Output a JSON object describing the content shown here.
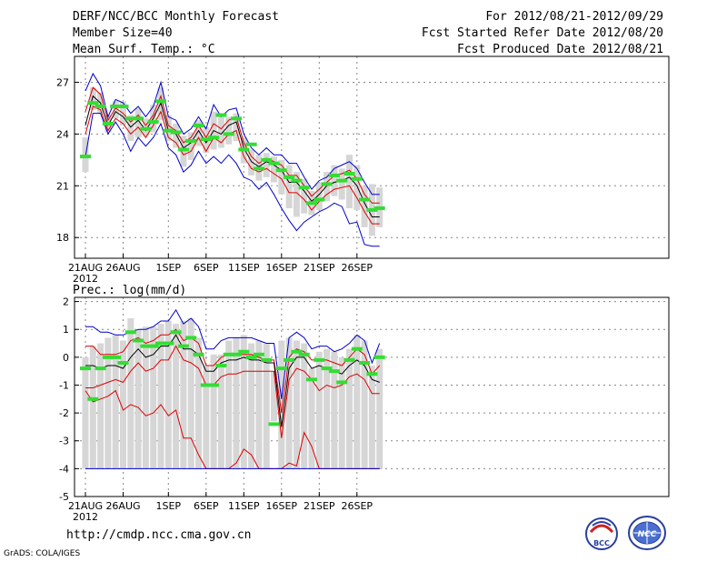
{
  "header": {
    "title": "DERF/NCC/BCC Monthly Forecast",
    "member_size": "Member Size=40",
    "variable": "Mean Surf. Temp.: °C",
    "period": "For 2012/08/21-2012/09/29",
    "started": "Fcst Started Refer Date 2012/08/20",
    "produced": "Fcst Produced Date 2012/08/21"
  },
  "footer": {
    "url": "http://cmdp.ncc.cma.gov.cn",
    "credit": "GrADS: COLA/IGES",
    "logo_bcc": "BCC",
    "logo_ncc": "NCC"
  },
  "colors": {
    "mean": "#000000",
    "spread": "#dd0000",
    "envelope": "#0000cc",
    "box": "#d6d6d6",
    "median": "#33dd33",
    "grid": "#888888"
  },
  "chart_data": [
    {
      "type": "line",
      "title": "Mean Surf. Temp.: °C",
      "x_tick_labels": [
        "21AUG",
        "26AUG",
        "1SEP",
        "6SEP",
        "11SEP",
        "16SEP",
        "21SEP",
        "26SEP"
      ],
      "x_year_label": "2012",
      "x_tick_days": [
        0,
        5,
        11,
        16,
        21,
        26,
        31,
        36
      ],
      "ylim": [
        16.8,
        28.5
      ],
      "y_ticks": [
        18,
        21,
        24,
        27
      ],
      "grid": true,
      "days": [
        0,
        1,
        2,
        3,
        4,
        5,
        6,
        7,
        8,
        9,
        10,
        11,
        12,
        13,
        14,
        15,
        16,
        17,
        18,
        19,
        20,
        21,
        22,
        23,
        24,
        25,
        26,
        27,
        28,
        29,
        30,
        31,
        32,
        33,
        34,
        35,
        36,
        37,
        38,
        39
      ],
      "series": [
        {
          "name": "max",
          "values": [
            26.5,
            27.5,
            26.8,
            25.0,
            26.0,
            25.8,
            25.2,
            25.6,
            25.0,
            25.6,
            27.0,
            25.0,
            24.8,
            24.0,
            24.3,
            25.0,
            24.3,
            25.7,
            25.0,
            25.4,
            25.5,
            24.0,
            23.2,
            22.8,
            23.2,
            22.8,
            22.8,
            22.3,
            22.3,
            21.5,
            20.8,
            21.3,
            21.5,
            22.0,
            22.2,
            22.4,
            22.0,
            21.2,
            20.5,
            20.5
          ]
        },
        {
          "name": "upper",
          "values": [
            25.3,
            26.7,
            26.3,
            24.8,
            25.5,
            25.2,
            24.7,
            25.1,
            24.5,
            25.1,
            26.2,
            24.5,
            24.2,
            23.5,
            23.8,
            24.5,
            23.8,
            24.6,
            24.3,
            24.8,
            25.0,
            23.5,
            22.7,
            22.3,
            22.6,
            22.4,
            22.2,
            21.6,
            21.6,
            21.0,
            20.4,
            20.8,
            21.2,
            21.6,
            21.7,
            21.9,
            21.4,
            20.5,
            20.0,
            20.0
          ]
        },
        {
          "name": "mean",
          "values": [
            24.5,
            26.2,
            25.8,
            24.5,
            25.3,
            25.0,
            24.4,
            24.8,
            24.2,
            24.9,
            25.8,
            24.2,
            24.0,
            23.2,
            23.5,
            24.2,
            23.5,
            24.2,
            24.0,
            24.5,
            24.7,
            23.2,
            22.4,
            22.1,
            22.4,
            22.2,
            21.9,
            21.2,
            21.2,
            20.7,
            20.1,
            20.5,
            21.0,
            21.2,
            21.3,
            21.5,
            21.0,
            20.0,
            19.2,
            19.2
          ]
        },
        {
          "name": "lower",
          "values": [
            24.0,
            25.6,
            25.4,
            24.2,
            24.9,
            24.6,
            24.0,
            24.4,
            23.8,
            24.5,
            25.3,
            23.8,
            23.5,
            22.8,
            23.0,
            23.8,
            23.0,
            23.8,
            23.5,
            24.0,
            24.2,
            22.7,
            22.0,
            21.8,
            22.0,
            21.7,
            21.4,
            20.6,
            20.6,
            20.2,
            19.6,
            20.1,
            20.5,
            20.8,
            20.9,
            21.0,
            20.3,
            19.5,
            18.8,
            18.8
          ]
        },
        {
          "name": "min",
          "values": [
            22.7,
            25.2,
            25.2,
            24.0,
            24.7,
            24.0,
            23.0,
            23.8,
            23.3,
            23.8,
            24.6,
            23.2,
            22.8,
            21.8,
            22.2,
            23.0,
            22.3,
            22.7,
            22.3,
            22.8,
            22.3,
            21.5,
            21.3,
            20.8,
            21.2,
            20.5,
            19.7,
            19.0,
            18.4,
            18.9,
            19.2,
            19.5,
            19.7,
            20.0,
            19.8,
            18.8,
            18.9,
            17.6,
            17.5,
            17.5
          ]
        }
      ],
      "boxes": [
        {
          "lo": 21.8,
          "hi": 23.8,
          "med": 22.7
        },
        {
          "lo": 25.4,
          "hi": 26.7,
          "med": 25.8
        },
        {
          "lo": 25.2,
          "hi": 26.4,
          "med": 25.6
        },
        {
          "lo": 24.1,
          "hi": 25.1,
          "med": 24.6
        },
        {
          "lo": 24.9,
          "hi": 25.9,
          "med": 25.6
        },
        {
          "lo": 24.5,
          "hi": 25.9,
          "med": 25.6
        },
        {
          "lo": 23.6,
          "hi": 25.1,
          "med": 24.9
        },
        {
          "lo": 23.8,
          "hi": 25.5,
          "med": 24.9
        },
        {
          "lo": 23.9,
          "hi": 24.9,
          "med": 24.3
        },
        {
          "lo": 24.1,
          "hi": 25.7,
          "med": 24.7
        },
        {
          "lo": 24.8,
          "hi": 26.7,
          "med": 25.9
        },
        {
          "lo": 23.6,
          "hi": 25.1,
          "med": 24.2
        },
        {
          "lo": 23.2,
          "hi": 24.6,
          "med": 24.1
        },
        {
          "lo": 22.1,
          "hi": 23.9,
          "med": 23.1
        },
        {
          "lo": 22.5,
          "hi": 24.1,
          "med": 23.6
        },
        {
          "lo": 23.3,
          "hi": 24.8,
          "med": 24.5
        },
        {
          "lo": 22.9,
          "hi": 24.4,
          "med": 23.7
        },
        {
          "lo": 23.1,
          "hi": 25.3,
          "med": 23.8
        },
        {
          "lo": 23.2,
          "hi": 25.0,
          "med": 25.1
        },
        {
          "lo": 23.4,
          "hi": 25.0,
          "med": 24.0
        },
        {
          "lo": 23.6,
          "hi": 25.2,
          "med": 24.9
        },
        {
          "lo": 22.3,
          "hi": 23.8,
          "med": 23.1
        },
        {
          "lo": 21.6,
          "hi": 23.1,
          "med": 23.4
        },
        {
          "lo": 21.3,
          "hi": 22.8,
          "med": 22.0
        },
        {
          "lo": 21.5,
          "hi": 22.9,
          "med": 22.5
        },
        {
          "lo": 21.2,
          "hi": 22.7,
          "med": 22.3
        },
        {
          "lo": 20.5,
          "hi": 22.5,
          "med": 21.9
        },
        {
          "lo": 19.7,
          "hi": 22.2,
          "med": 21.5
        },
        {
          "lo": 19.2,
          "hi": 21.8,
          "med": 21.3
        },
        {
          "lo": 19.4,
          "hi": 21.4,
          "med": 20.9
        },
        {
          "lo": 19.3,
          "hi": 20.7,
          "med": 20.0
        },
        {
          "lo": 19.6,
          "hi": 21.2,
          "med": 20.2
        },
        {
          "lo": 20.1,
          "hi": 21.8,
          "med": 21.1
        },
        {
          "lo": 20.4,
          "hi": 22.2,
          "med": 21.6
        },
        {
          "lo": 20.2,
          "hi": 22.0,
          "med": 21.3
        },
        {
          "lo": 19.7,
          "hi": 22.8,
          "med": 21.7
        },
        {
          "lo": 19.6,
          "hi": 22.2,
          "med": 21.4
        },
        {
          "lo": 18.6,
          "hi": 21.0,
          "med": 20.2
        },
        {
          "lo": 18.1,
          "hi": 21.1,
          "med": 19.6
        },
        {
          "lo": 18.6,
          "hi": 20.9,
          "med": 19.7
        }
      ]
    },
    {
      "type": "line",
      "title": "Prec.: log(mm/d)",
      "x_tick_labels": [
        "21AUG",
        "26AUG",
        "1SEP",
        "6SEP",
        "11SEP",
        "16SEP",
        "21SEP",
        "26SEP"
      ],
      "x_year_label": "2012",
      "x_tick_days": [
        0,
        5,
        11,
        16,
        21,
        26,
        31,
        36
      ],
      "ylim": [
        -5,
        2.15
      ],
      "y_ticks": [
        -5,
        -4,
        -3,
        -2,
        -1,
        0,
        1,
        2
      ],
      "grid": true,
      "days": [
        0,
        1,
        2,
        3,
        4,
        5,
        6,
        7,
        8,
        9,
        10,
        11,
        12,
        13,
        14,
        15,
        16,
        17,
        18,
        19,
        20,
        21,
        22,
        23,
        24,
        25,
        26,
        27,
        28,
        29,
        30,
        31,
        32,
        33,
        34,
        35,
        36,
        37,
        38,
        39
      ],
      "series": [
        {
          "name": "max",
          "values": [
            1.1,
            1.1,
            0.9,
            0.9,
            0.8,
            0.8,
            0.9,
            1.0,
            1.0,
            1.1,
            1.3,
            1.3,
            1.7,
            1.2,
            1.4,
            1.1,
            0.3,
            0.3,
            0.6,
            0.7,
            0.7,
            0.7,
            0.7,
            0.6,
            0.5,
            0.5,
            -1.5,
            0.7,
            0.9,
            0.7,
            0.3,
            0.4,
            0.4,
            0.2,
            0.3,
            0.5,
            0.8,
            0.6,
            -0.2,
            0.5
          ]
        },
        {
          "name": "upper",
          "values": [
            0.4,
            0.4,
            0.1,
            0.1,
            0.1,
            0.2,
            0.6,
            0.7,
            0.5,
            0.6,
            0.8,
            0.8,
            1.0,
            0.6,
            0.7,
            0.5,
            -0.3,
            -0.3,
            0.0,
            0.1,
            0.1,
            0.1,
            0.1,
            0.0,
            -0.1,
            -0.1,
            -2.0,
            0.0,
            0.3,
            0.2,
            -0.1,
            -0.1,
            -0.1,
            -0.2,
            -0.3,
            0.0,
            0.3,
            0.1,
            -0.6,
            -0.3
          ]
        },
        {
          "name": "mean",
          "values": [
            -0.3,
            -0.3,
            -0.4,
            -0.3,
            -0.3,
            -0.4,
            0.0,
            0.3,
            0.0,
            0.1,
            0.4,
            0.4,
            0.8,
            0.3,
            0.3,
            0.1,
            -0.5,
            -0.5,
            -0.2,
            -0.1,
            -0.1,
            0.0,
            -0.1,
            -0.1,
            -0.2,
            -0.2,
            -2.5,
            -0.4,
            0.0,
            0.0,
            -0.4,
            -0.3,
            -0.4,
            -0.5,
            -0.6,
            -0.3,
            -0.1,
            -0.3,
            -0.8,
            -0.9
          ]
        },
        {
          "name": "lower",
          "values": [
            -1.1,
            -1.1,
            -1.0,
            -0.9,
            -0.8,
            -0.9,
            -0.5,
            -0.2,
            -0.5,
            -0.4,
            -0.1,
            -0.1,
            0.4,
            -0.1,
            -0.2,
            -0.4,
            -1.0,
            -1.0,
            -0.7,
            -0.6,
            -0.6,
            -0.5,
            -0.5,
            -0.5,
            -0.5,
            -0.5,
            -2.9,
            -0.8,
            -0.4,
            -0.5,
            -0.8,
            -1.2,
            -1.0,
            -1.1,
            -1.0,
            -0.7,
            -0.6,
            -0.8,
            -1.3,
            -1.3
          ]
        },
        {
          "name": "low-bound",
          "values": [
            -1.2,
            -1.6,
            -1.5,
            -1.4,
            -1.2,
            -1.9,
            -1.7,
            -1.8,
            -2.1,
            -2.0,
            -1.7,
            -2.1,
            -1.9,
            -2.9,
            -2.9,
            -3.5,
            -4.0,
            -4.0,
            -4.0,
            -4.0,
            -3.8,
            -3.3,
            -3.5,
            -4.0,
            -4.0,
            -4.0,
            -4.0,
            -3.8,
            -3.9,
            -2.7,
            -3.2,
            -4.0,
            -4.0,
            -4.0,
            -4.0,
            -4.0,
            -4.0,
            -4.0,
            -4.0,
            -4.0
          ]
        },
        {
          "name": "floor",
          "values": [
            -4.0,
            -4.0,
            -4.0,
            -4.0,
            -4.0,
            -4.0,
            -4.0,
            -4.0,
            -4.0,
            -4.0,
            -4.0,
            -4.0,
            -4.0,
            -4.0,
            -4.0,
            -4.0,
            -4.0,
            -4.0,
            -4.0,
            -4.0,
            -4.0,
            -4.0,
            -4.0,
            -4.0,
            -4.0,
            -4.0,
            -4.0,
            -4.0,
            -4.0,
            -4.0,
            -4.0,
            -4.0,
            -4.0,
            -4.0,
            -4.0,
            -4.0,
            -4.0,
            -4.0,
            -4.0,
            -4.0
          ]
        }
      ],
      "boxes": [
        {
          "lo": -4.0,
          "hi": 0.0,
          "med": -0.4
        },
        {
          "lo": -4.0,
          "hi": 0.4,
          "med": -1.5
        },
        {
          "lo": -4.0,
          "hi": 0.5,
          "med": -0.4
        },
        {
          "lo": -4.0,
          "hi": 0.7,
          "med": 0.0
        },
        {
          "lo": -4.0,
          "hi": 0.8,
          "med": 0.0
        },
        {
          "lo": -4.0,
          "hi": 0.6,
          "med": -0.2
        },
        {
          "lo": -4.0,
          "hi": 1.4,
          "med": 0.9
        },
        {
          "lo": -4.0,
          "hi": 1.0,
          "med": 0.6
        },
        {
          "lo": -4.0,
          "hi": 1.1,
          "med": 0.4
        },
        {
          "lo": -4.0,
          "hi": 1.1,
          "med": 0.4
        },
        {
          "lo": -4.0,
          "hi": 1.2,
          "med": 0.5
        },
        {
          "lo": -4.0,
          "hi": 1.3,
          "med": 0.5
        },
        {
          "lo": -4.0,
          "hi": 1.2,
          "med": 0.9
        },
        {
          "lo": -4.0,
          "hi": 1.3,
          "med": 0.4
        },
        {
          "lo": -4.0,
          "hi": 1.4,
          "med": 0.7
        },
        {
          "lo": -4.0,
          "hi": 0.7,
          "med": 0.1
        },
        {
          "lo": -4.0,
          "hi": -0.3,
          "med": -1.0
        },
        {
          "lo": -4.0,
          "hi": 0.1,
          "med": -1.0
        },
        {
          "lo": -4.0,
          "hi": 0.1,
          "med": -0.3
        },
        {
          "lo": -4.0,
          "hi": 0.6,
          "med": 0.1
        },
        {
          "lo": -4.0,
          "hi": 0.7,
          "med": 0.1
        },
        {
          "lo": -4.0,
          "hi": 0.8,
          "med": 0.2
        },
        {
          "lo": -4.0,
          "hi": 0.5,
          "med": 0.0
        },
        {
          "lo": -4.0,
          "hi": 0.6,
          "med": 0.1
        },
        {
          "lo": -4.0,
          "hi": 0.5,
          "med": -0.1
        },
        {
          "lo": -2.3,
          "hi": -0.5,
          "med": -2.4
        },
        {
          "lo": -4.0,
          "hi": 0.6,
          "med": -0.4
        },
        {
          "lo": -4.0,
          "hi": 0.7,
          "med": -0.1
        },
        {
          "lo": -4.0,
          "hi": 0.6,
          "med": 0.2
        },
        {
          "lo": -4.0,
          "hi": 0.5,
          "med": 0.1
        },
        {
          "lo": -4.0,
          "hi": -0.4,
          "med": -0.8
        },
        {
          "lo": -4.0,
          "hi": 0.2,
          "med": -0.1
        },
        {
          "lo": -4.0,
          "hi": 0.3,
          "med": -0.4
        },
        {
          "lo": -4.0,
          "hi": 0.2,
          "med": -0.5
        },
        {
          "lo": -4.0,
          "hi": 0.0,
          "med": -0.9
        },
        {
          "lo": -4.0,
          "hi": 0.3,
          "med": -0.1
        },
        {
          "lo": -4.0,
          "hi": 0.8,
          "med": 0.3
        },
        {
          "lo": -4.0,
          "hi": 0.6,
          "med": -0.2
        },
        {
          "lo": -4.0,
          "hi": -0.3,
          "med": -0.6
        },
        {
          "lo": -4.0,
          "hi": 0.3,
          "med": 0.0
        }
      ]
    }
  ]
}
